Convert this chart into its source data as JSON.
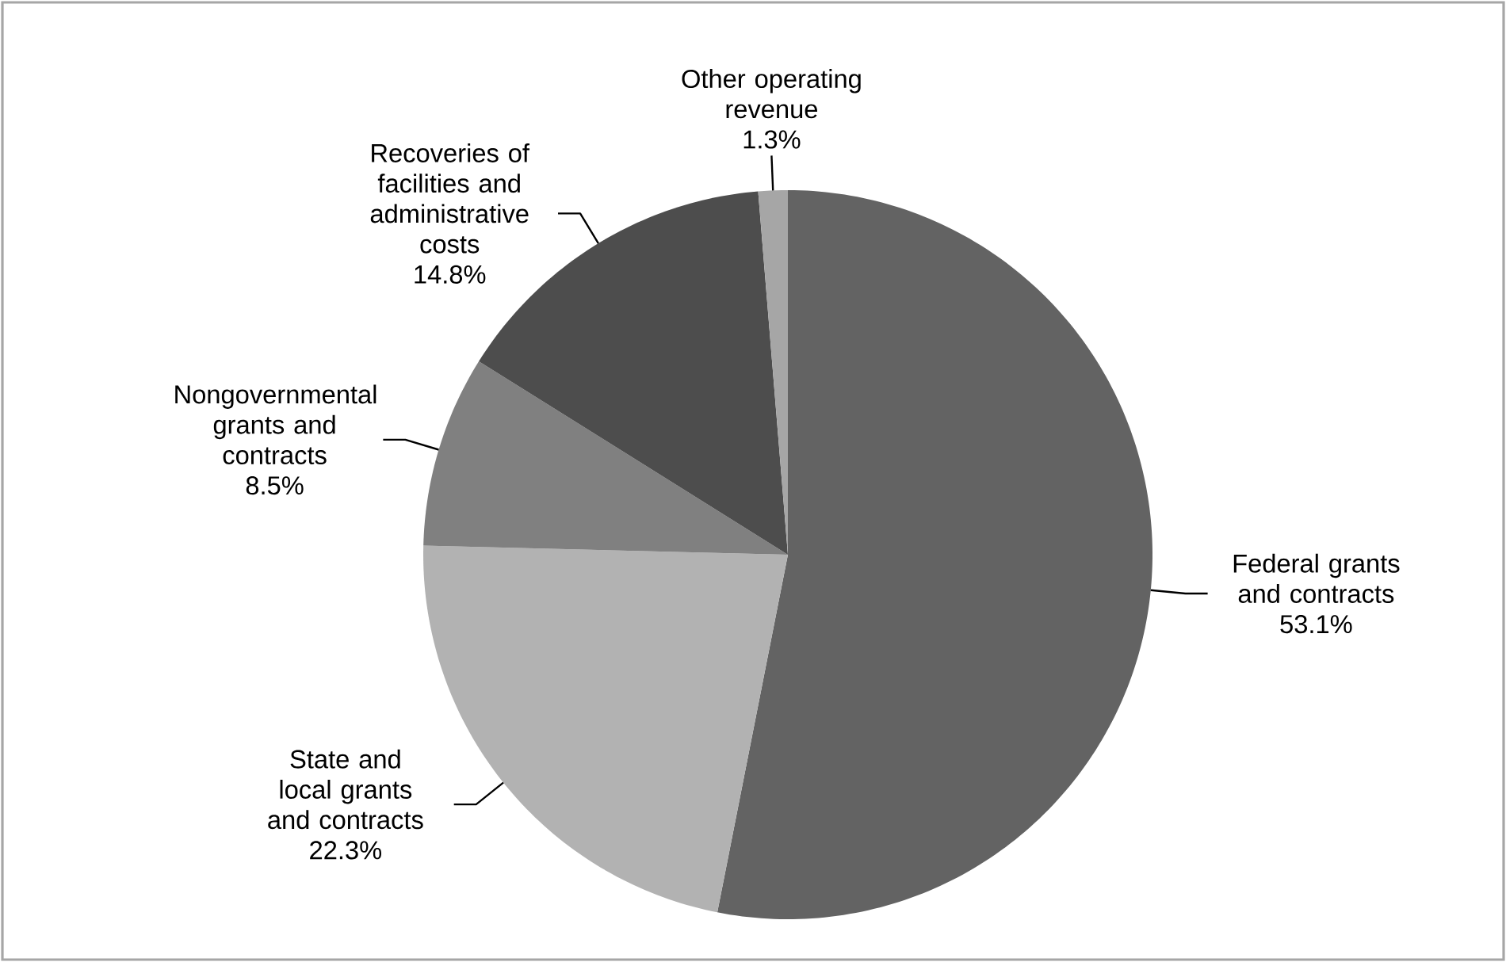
{
  "chart_data": {
    "type": "pie",
    "categories": [
      "Federal grants and contracts",
      "State and local grants and contracts",
      "Nongovernmental grants and contracts",
      "Recoveries of facilities and administrative costs",
      "Other operating revenue"
    ],
    "values": [
      53.1,
      22.3,
      8.5,
      14.8,
      1.3
    ],
    "value_labels": [
      "53.1%",
      "22.3%",
      "8.5%",
      "14.8%",
      "1.3%"
    ],
    "colors": [
      "#636363",
      "#b2b2b2",
      "#808080",
      "#4d4d4d",
      "#a6a6a6"
    ]
  }
}
